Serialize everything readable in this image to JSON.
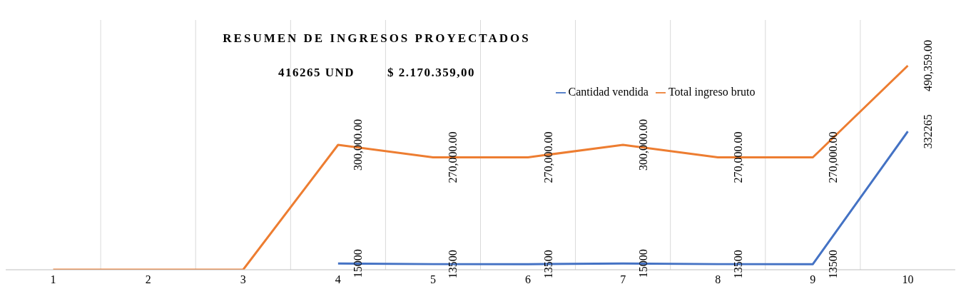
{
  "chart_data": {
    "type": "line",
    "title": "RESUMEN DE INGRESOS PROYECTADOS",
    "subtitle": "416265 UND        $ 2.170.359,00",
    "categories": [
      "1",
      "2",
      "3",
      "4",
      "5",
      "6",
      "7",
      "8",
      "9",
      "10"
    ],
    "series": [
      {
        "name": "Cantidad vendida",
        "color": "#4472c4",
        "values": [
          null,
          null,
          null,
          15000,
          13500,
          13500,
          15000,
          13500,
          13500,
          332265
        ],
        "value_labels": [
          null,
          null,
          null,
          "15000",
          "13500",
          "13500",
          "15000",
          "13500",
          "13500",
          "332265"
        ]
      },
      {
        "name": "Total ingreso bruto",
        "color": "#ed7d31",
        "values": [
          0,
          0,
          0,
          300000,
          270000,
          270000,
          300000,
          270000,
          270000,
          490359
        ],
        "value_labels": [
          null,
          null,
          null,
          "300,000.00",
          "270,000.00",
          "270,000.00",
          "300,000.00",
          "270,000.00",
          "270,000.00",
          "490,359.00"
        ]
      }
    ],
    "ylim": [
      0,
      600000
    ],
    "tick_labels": "x",
    "grid": "x",
    "legend": "top",
    "marker": "none",
    "line_style": "solid"
  }
}
